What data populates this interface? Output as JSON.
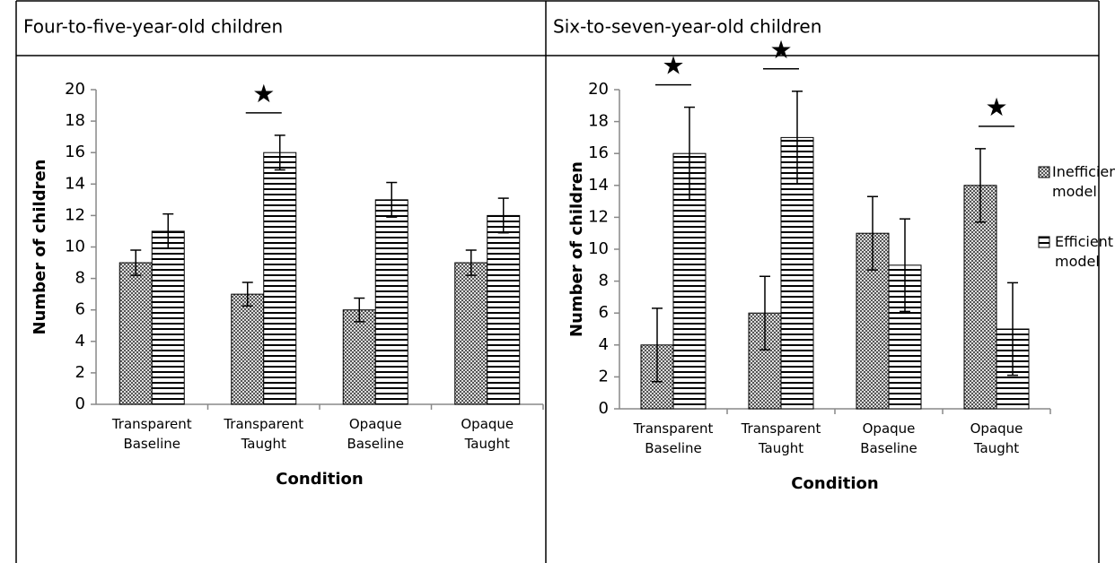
{
  "chart_data": [
    {
      "type": "bar",
      "title": "Four-to-five-year-old children",
      "categories": [
        "Transparent Baseline",
        "Transparent Taught",
        "Opaque Baseline",
        "Opaque Taught"
      ],
      "series": [
        {
          "pattern": "crosshatch",
          "values": [
            9,
            7,
            6,
            9
          ],
          "errors": [
            0.8,
            0.75,
            0.75,
            0.8
          ]
        },
        {
          "pattern": "stripes",
          "values": [
            11,
            16,
            13,
            12
          ],
          "errors": [
            1.1,
            1.1,
            1.1,
            1.1
          ]
        }
      ],
      "ylim": [
        0,
        20
      ],
      "yticks": [
        0,
        2,
        4,
        6,
        8,
        10,
        12,
        14,
        16,
        18,
        20
      ],
      "ylabel": "Number of children",
      "xlabel": "Condition",
      "annotations": [
        {
          "text": "★",
          "category": "Transparent Taught"
        }
      ]
    },
    {
      "type": "bar",
      "title": "Six-to-seven-year-old children",
      "categories": [
        "Transparent Baseline",
        "Transparent Taught",
        "Opaque Baseline",
        "Opaque Taught"
      ],
      "series": [
        {
          "name": "Inefficient model",
          "pattern": "crosshatch",
          "values": [
            4,
            6,
            11,
            14
          ],
          "errors": [
            2.3,
            2.3,
            2.3,
            2.3
          ]
        },
        {
          "name": "Efficient model",
          "pattern": "stripes",
          "values": [
            16,
            17,
            9,
            5
          ],
          "errors": [
            2.9,
            2.9,
            2.9,
            2.9
          ]
        }
      ],
      "ylim": [
        0,
        20
      ],
      "yticks": [
        0,
        2,
        4,
        6,
        8,
        10,
        12,
        14,
        16,
        18,
        20
      ],
      "ylabel": "Number of children",
      "xlabel": "Condition",
      "legend": "right",
      "annotations": [
        {
          "text": "★",
          "category": "Transparent Baseline"
        },
        {
          "text": "★",
          "category": "Transparent Taught"
        },
        {
          "text": "★",
          "category": "Opaque Taught"
        }
      ]
    }
  ]
}
